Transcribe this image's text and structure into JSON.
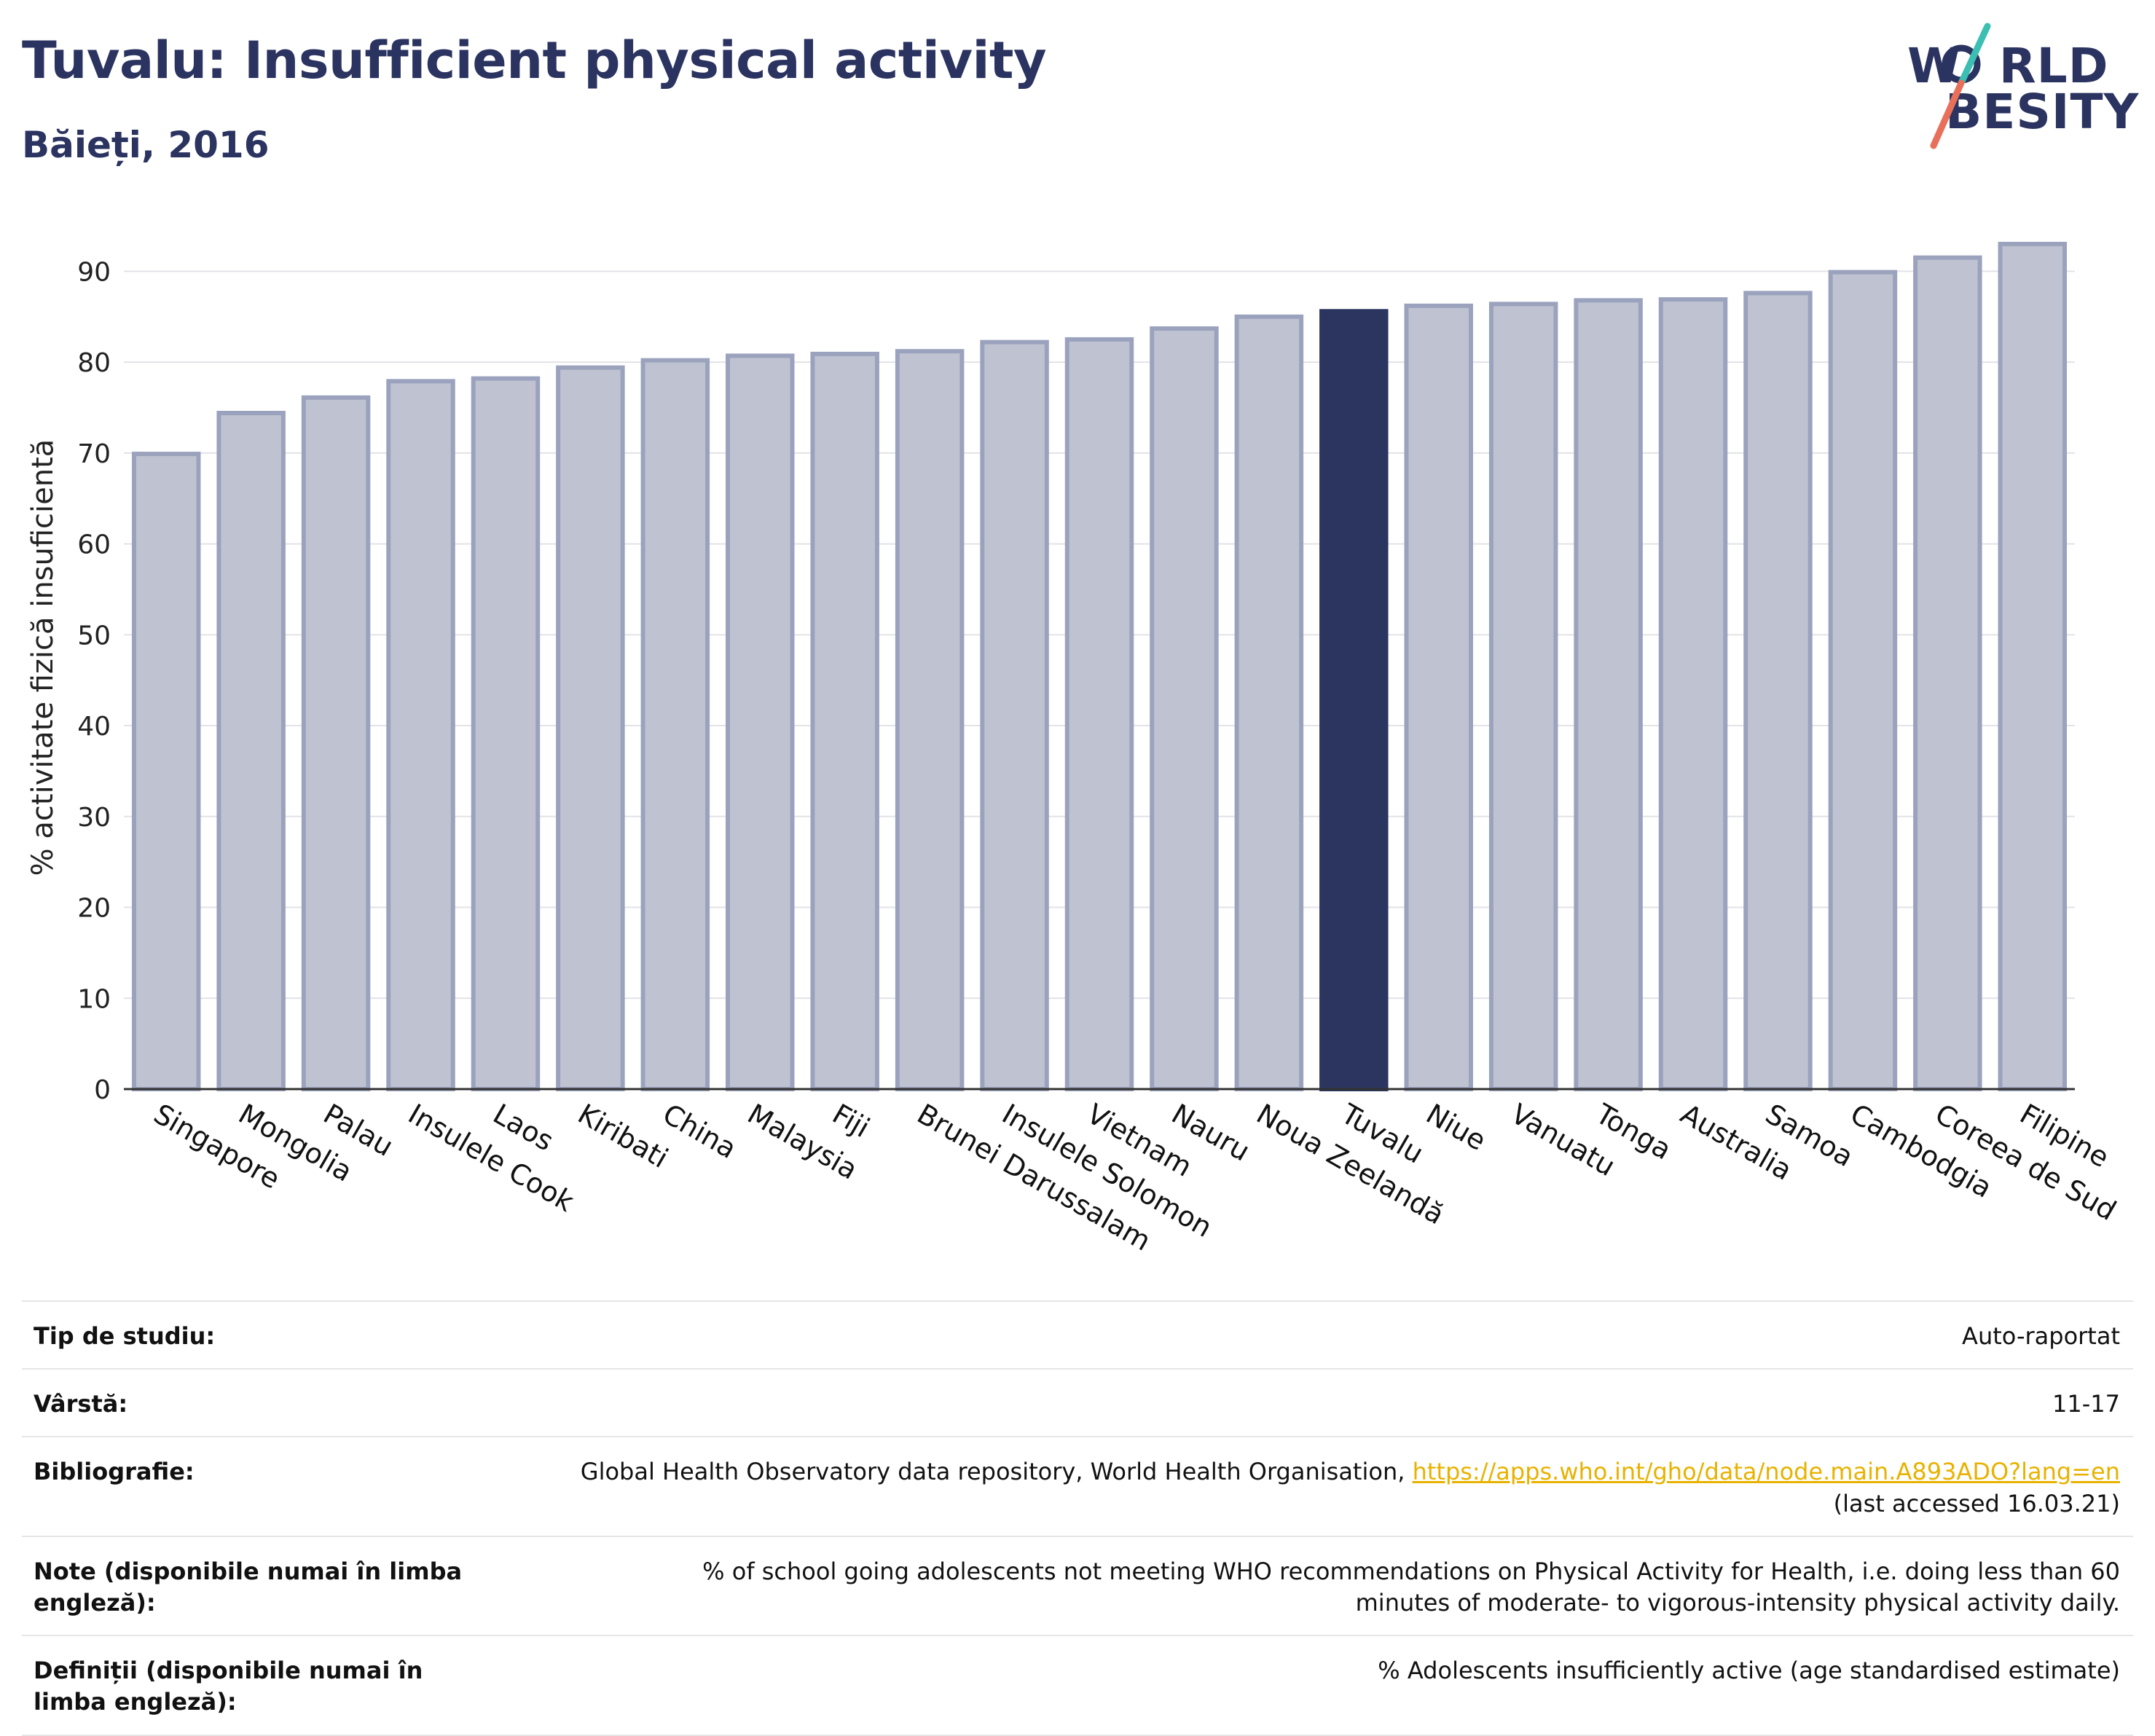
{
  "header": {
    "title": "Tuvalu: Insufficient physical activity",
    "subtitle": "Băieți, 2016"
  },
  "logo": {
    "line1": "WORLD",
    "line2": "OBESITY",
    "line1_prefix": "W",
    "line1_suffix": "RLD",
    "line2_prefix": "",
    "line2_suffix": "BESITY",
    "colors": {
      "text": "#2b3360",
      "slash_top": "#3bbfb2",
      "slash_bottom": "#e8705a"
    }
  },
  "chart_data": {
    "type": "bar",
    "ylabel": "% activitate fizică insuficientă",
    "xlabel": "",
    "ylim": [
      0,
      95
    ],
    "yticks": [
      0,
      10,
      20,
      30,
      40,
      50,
      60,
      70,
      80,
      90
    ],
    "grid": true,
    "highlight": "Tuvalu",
    "colors": {
      "bar": "#bfc3d1",
      "bar_edge": "#9ba2bd",
      "highlight": "#2b3560",
      "grid": "#e3e3e8",
      "axis": "#333333"
    },
    "categories": [
      "Singapore",
      "Mongolia",
      "Palau",
      "Insulele Cook",
      "Laos",
      "Kiribati",
      "China",
      "Malaysia",
      "Fiji",
      "Brunei Darussalam",
      "Insulele Solomon",
      "Vietnam",
      "Nauru",
      "Noua Zeelandă",
      "Tuvalu",
      "Niue",
      "Vanuatu",
      "Tonga",
      "Australia",
      "Samoa",
      "Cambodgia",
      "Coreea de Sud",
      "Filipine"
    ],
    "values": [
      69.9,
      74.4,
      76.1,
      77.9,
      78.2,
      79.4,
      80.2,
      80.7,
      80.9,
      81.2,
      82.2,
      82.5,
      83.7,
      85.0,
      85.6,
      86.2,
      86.4,
      86.8,
      86.9,
      87.6,
      89.9,
      91.5,
      93.0
    ]
  },
  "meta": {
    "rows": [
      {
        "label": "Tip de studiu:",
        "value": "Auto-raportat"
      },
      {
        "label": "Vârstă:",
        "value": "11-17"
      },
      {
        "label": "Bibliografie:",
        "value": "Global Health Observatory data repository, World Health Organisation, ",
        "link": "https://apps.who.int/gho/data/node.main.A893ADO?lang=en",
        "value2": "(last accessed 16.03.21)"
      },
      {
        "label": "Note (disponibile numai în limba engleză):",
        "value": "% of school going adolescents not meeting WHO recommendations on Physical Activity for Health, i.e. doing less than 60 minutes of moderate- to vigorous-intensity physical activity daily."
      },
      {
        "label": "Definiții (disponibile numai în limba engleză):",
        "value": "% Adolescents insufficiently active (age standardised estimate)"
      }
    ]
  }
}
